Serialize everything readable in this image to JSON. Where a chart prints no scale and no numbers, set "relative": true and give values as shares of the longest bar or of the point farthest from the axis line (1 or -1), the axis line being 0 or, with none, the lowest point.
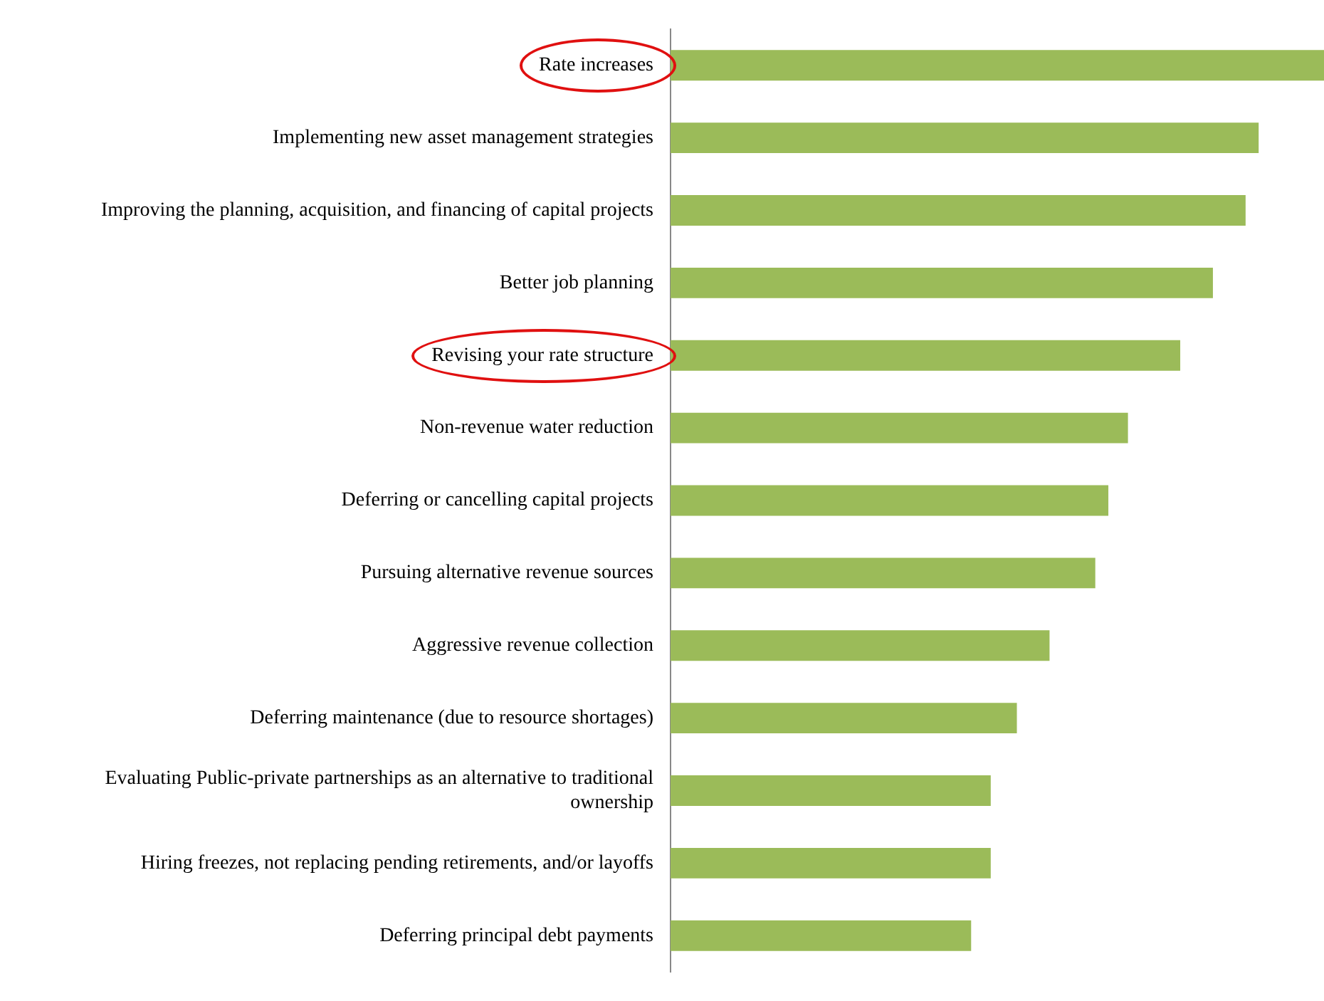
{
  "chart_data": {
    "type": "bar",
    "orientation": "horizontal",
    "relative": true,
    "categories": [
      "Rate increases",
      "Implementing new asset management strategies",
      "Improving the planning, acquisition, and financing of capital projects",
      "Better job planning",
      "Revising your rate structure",
      "Non-revenue water reduction",
      "Deferring or cancelling capital projects",
      "Pursuing alternative revenue sources",
      "Aggressive revenue collection",
      "Deferring maintenance (due to resource shortages)",
      "Evaluating Public-private partnerships as an alternative to traditional ownership",
      "Hiring freezes, not replacing pending retirements, and/or layoffs",
      "Deferring principal debt payments"
    ],
    "values": [
      1,
      0.9,
      0.88,
      0.83,
      0.78,
      0.7,
      0.67,
      0.65,
      0.58,
      0.53,
      0.49,
      0.49,
      0.46
    ],
    "color": "#9bbb59",
    "legend": false
  }
}
